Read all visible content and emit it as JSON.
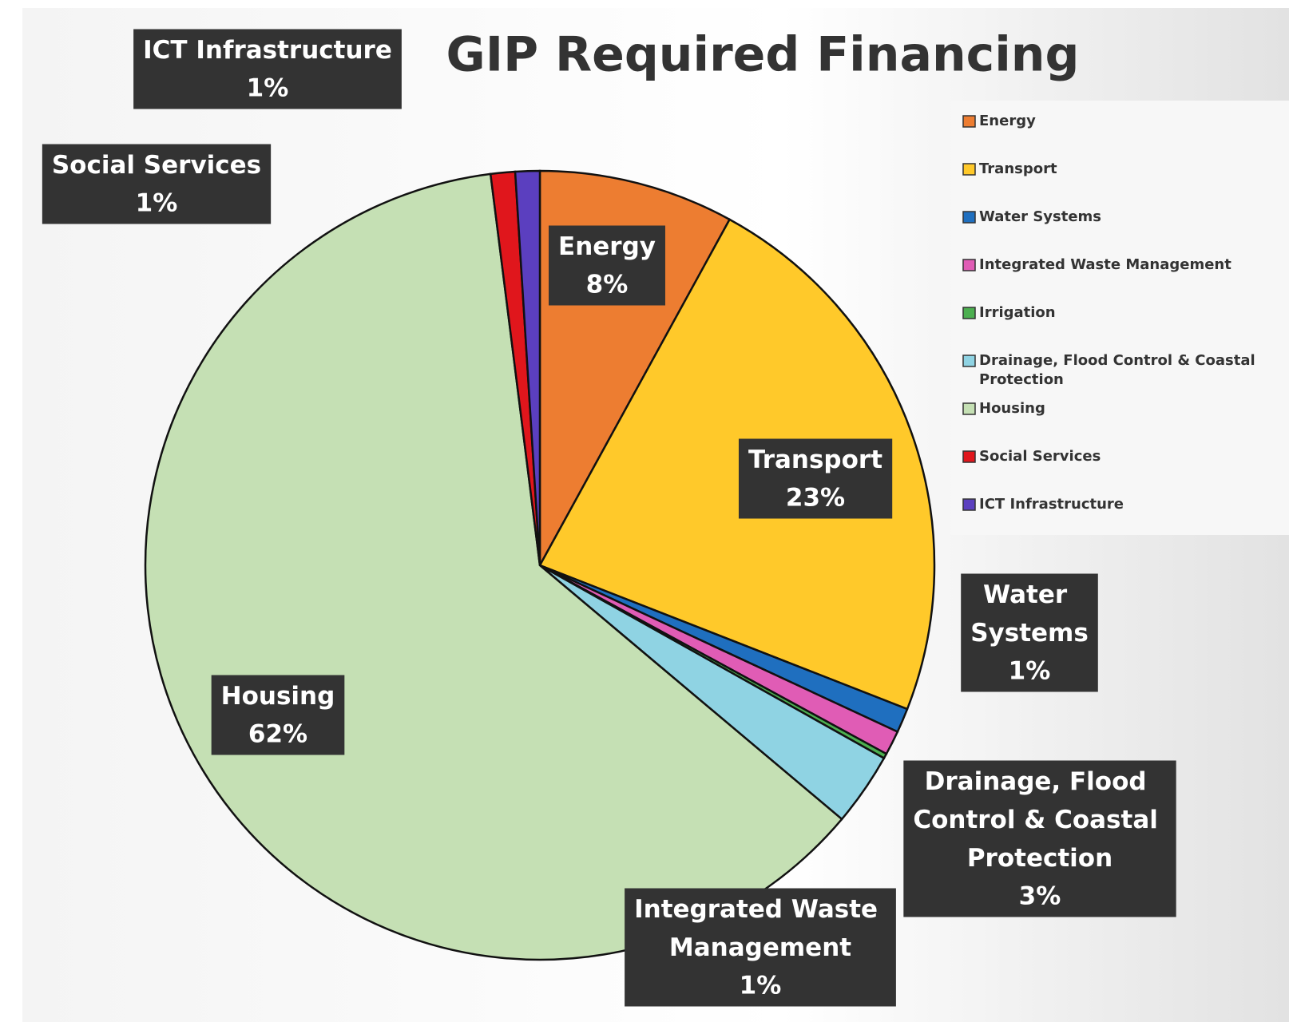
{
  "chart_data": {
    "type": "pie",
    "title": "GIP Required Financing",
    "categories": [
      "Energy",
      "Transport",
      "Water Systems",
      "Integrated Waste Management",
      "Irrigation",
      "Drainage, Flood Control & Coastal Protection",
      "Housing",
      "Social Services",
      "ICT Infrastructure"
    ],
    "values": [
      8,
      23,
      1,
      1,
      0.2,
      3,
      62,
      1,
      1
    ],
    "value_labels": [
      "8%",
      "23%",
      "1%",
      "1%",
      null,
      "3%",
      "62%",
      "1%",
      "1%"
    ],
    "colors": [
      "#ed7d31",
      "#ffc92a",
      "#1f6fbf",
      "#e05cb5",
      "#4caf50",
      "#8fd3e3",
      "#c5e0b4",
      "#e0161c",
      "#5b3fbf"
    ],
    "legend": "right"
  }
}
